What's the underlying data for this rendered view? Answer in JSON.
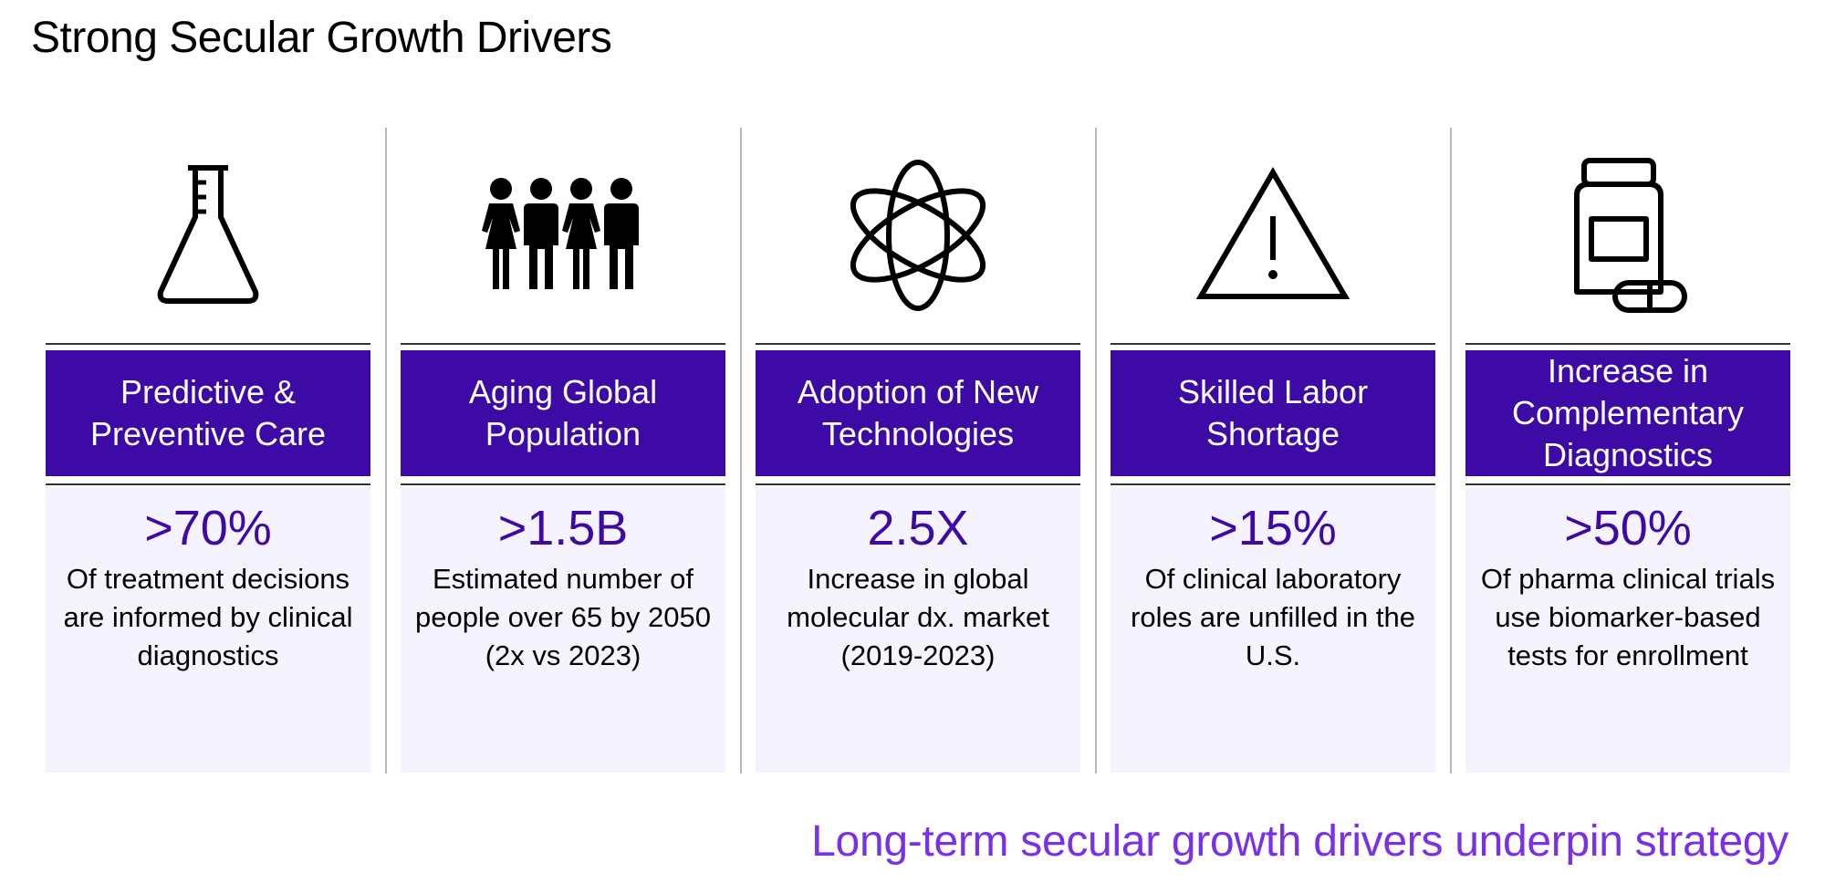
{
  "title": "Strong Secular Growth Drivers",
  "colors": {
    "header_bg": "#3d0aa6",
    "stat": "#3d0aa6",
    "body_bg": "#f5f3fd",
    "tagline": "#7a2fe8"
  },
  "drivers": [
    {
      "icon": "flask-icon",
      "heading": "Predictive & Preventive Care",
      "stat": ">70%",
      "description": "Of treatment decisions are informed by clinical diagnostics"
    },
    {
      "icon": "people-icon",
      "heading": "Aging Global Population",
      "stat": ">1.5B",
      "description": "Estimated number of people over 65 by 2050 (2x vs 2023)"
    },
    {
      "icon": "atom-icon",
      "heading": "Adoption of New Technologies",
      "stat": "2.5X",
      "description": "Increase in global molecular dx. market (2019-2023)"
    },
    {
      "icon": "warning-icon",
      "heading": "Skilled Labor Shortage",
      "stat": ">15%",
      "description": "Of clinical laboratory roles are unfilled in the U.S."
    },
    {
      "icon": "medicine-bottle-icon",
      "heading": "Increase in Complementary Diagnostics",
      "stat": ">50%",
      "description": "Of pharma clinical trials use biomarker-based tests for enrollment"
    }
  ],
  "tagline": "Long-term secular growth drivers underpin strategy"
}
